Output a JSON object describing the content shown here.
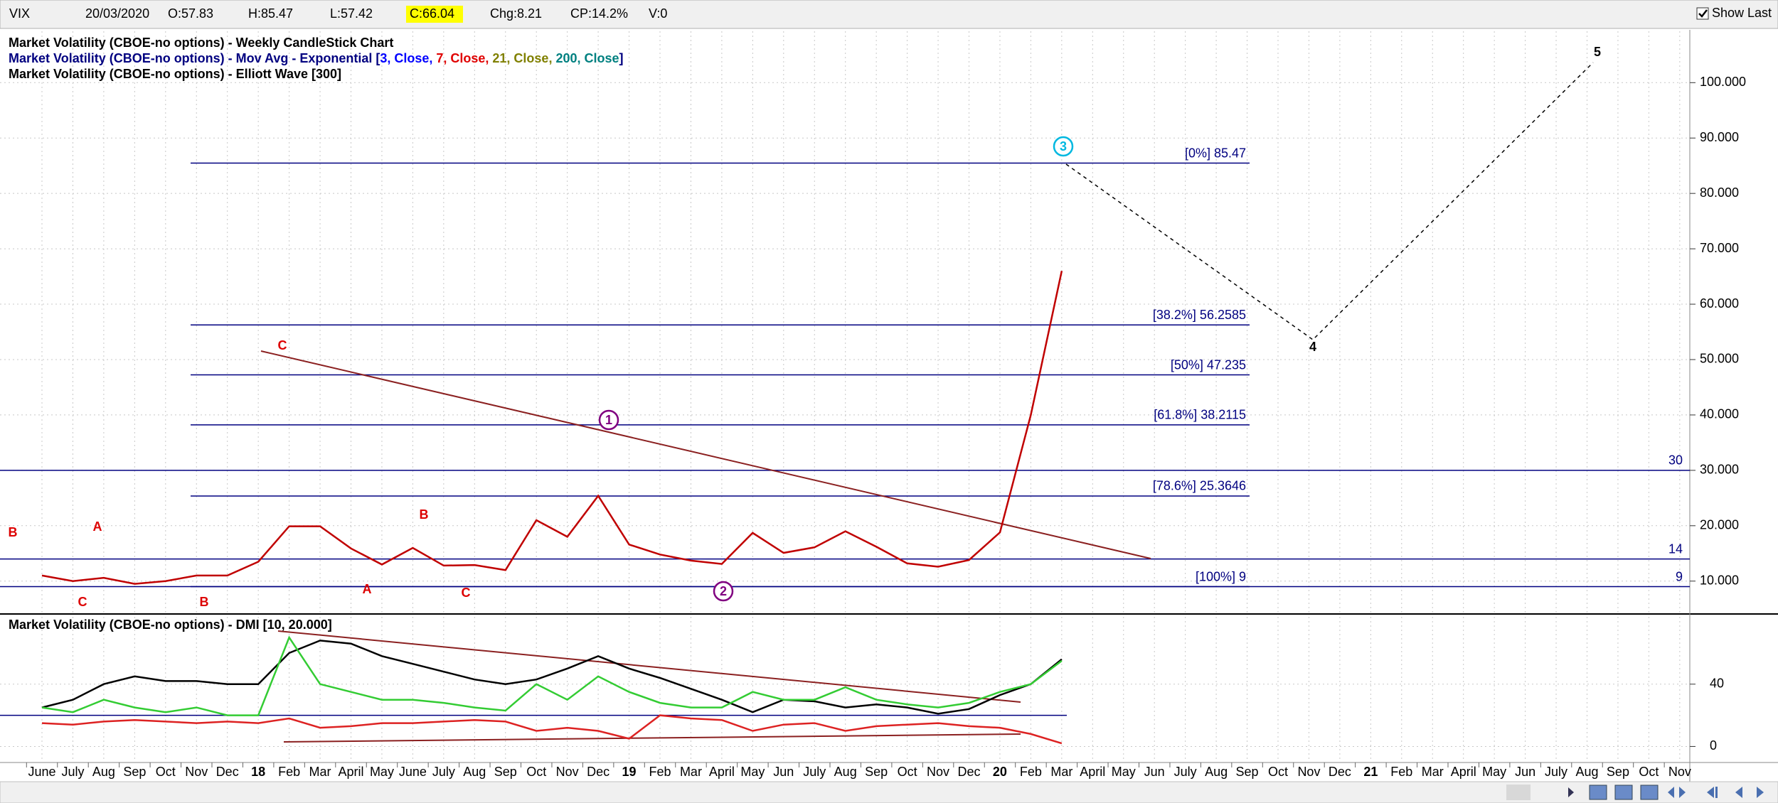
{
  "header": {
    "symbol": "VIX",
    "date": "20/03/2020",
    "open": "O:57.83",
    "high": "H:85.47",
    "low": "L:57.42",
    "close": "C:66.04",
    "chg": "Chg:8.21",
    "cp": "CP:14.2%",
    "volume": "V:0",
    "show_last": "Show Last"
  },
  "chart_data": [
    {
      "type": "line",
      "legend": [
        [
          {
            "text": "Market Volatility (CBOE-no options) - Weekly CandleStick Chart",
            "color": "#000000"
          }
        ],
        [
          {
            "text": "Market Volatility (CBOE-no options) - Mov Avg - Exponential [",
            "color": "#000080"
          },
          {
            "text": "3, Close, ",
            "color": "#0000ff"
          },
          {
            "text": "7, Close, ",
            "color": "#e00000"
          },
          {
            "text": "21, Close, ",
            "color": "#808000"
          },
          {
            "text": "200, Close",
            "color": "#008080"
          },
          {
            "text": "]",
            "color": "#000080"
          }
        ],
        [
          {
            "text": "Market Volatility (CBOE-no options) - Elliott Wave [300]",
            "color": "#000000"
          }
        ]
      ],
      "categories": [
        "June",
        "July",
        "Aug",
        "Sep",
        "Oct",
        "Nov",
        "Dec",
        "18",
        "Feb",
        "Mar",
        "April",
        "May",
        "June",
        "July",
        "Aug",
        "Sep",
        "Oct",
        "Nov",
        "Dec",
        "19",
        "Feb",
        "Mar",
        "April",
        "May",
        "Jun",
        "July",
        "Aug",
        "Sep",
        "Oct",
        "Nov",
        "Dec",
        "20",
        "Feb",
        "Mar",
        "April",
        "May",
        "Jun",
        "July",
        "Aug",
        "Sep",
        "Oct",
        "Nov",
        "Dec",
        "21",
        "Feb",
        "Mar",
        "April",
        "May",
        "Jun",
        "July",
        "Aug",
        "Sep",
        "Oct",
        "Nov"
      ],
      "values": [
        11,
        10,
        10.6,
        9.5,
        10,
        11,
        11,
        13.5,
        19.9,
        19.9,
        15.9,
        13,
        16,
        12.8,
        12.9,
        12,
        21,
        18,
        25.4,
        16.6,
        14.8,
        13.7,
        13.1,
        18.7,
        15.1,
        16.1,
        19,
        16.2,
        13.2,
        12.6,
        13.8,
        18.8,
        40,
        66,
        null,
        null,
        null,
        null,
        null,
        null,
        null,
        null,
        null,
        null,
        null,
        null,
        null,
        null,
        null,
        null,
        null,
        null,
        null,
        null
      ],
      "color": "#c00000",
      "ylim": [
        4.27,
        109.2
      ],
      "yticks": [
        {
          "value": 10,
          "label": "10.000"
        },
        {
          "value": 20,
          "label": "20.000"
        },
        {
          "value": 30,
          "label": "30.000"
        },
        {
          "value": 40,
          "label": "40.000"
        },
        {
          "value": 50,
          "label": "50.000"
        },
        {
          "value": 60,
          "label": "60.000"
        },
        {
          "value": 70,
          "label": "70.000"
        },
        {
          "value": 80,
          "label": "80.000"
        },
        {
          "value": 90,
          "label": "90.000"
        },
        {
          "value": 100,
          "label": "100.000"
        }
      ],
      "grid": true,
      "levels": [
        30,
        14,
        9
      ],
      "fib_levels": [
        {
          "value": 85.47,
          "label": "[0%] 85.47"
        },
        {
          "value": 56.2585,
          "label": "[38.2%] 56.2585"
        },
        {
          "value": 47.235,
          "label": "[50%] 47.235"
        },
        {
          "value": 38.2115,
          "label": "[61.8%] 38.2115"
        },
        {
          "value": 25.3646,
          "label": "[78.6%] 25.3646"
        },
        {
          "value": 9,
          "label": "[100%] 9"
        }
      ],
      "wave_labels": [
        "B",
        "A",
        "C",
        "B",
        "C",
        "A",
        "B",
        "C",
        "1",
        "2",
        "3",
        "4",
        "5"
      ]
    },
    {
      "type": "line",
      "title": "Market Volatility (CBOE-no options) - DMI [10, 20.000]",
      "series": [
        {
          "color": "#000000",
          "values": [
            25,
            30,
            40,
            45,
            42,
            42,
            40,
            40,
            60,
            68,
            66,
            58,
            53,
            48,
            43,
            40,
            43,
            50,
            58,
            50,
            44,
            37,
            30,
            22,
            30,
            29,
            25,
            27,
            25,
            21,
            24,
            33,
            40,
            56
          ]
        },
        {
          "color": "#33cc33",
          "values": [
            25,
            22,
            30,
            25,
            22,
            25,
            20,
            20,
            70,
            40,
            35,
            30,
            30,
            28,
            25,
            23,
            40,
            30,
            45,
            35,
            28,
            25,
            25,
            35,
            30,
            30,
            38,
            30,
            27,
            25,
            28,
            35,
            40,
            55
          ]
        },
        {
          "color": "#dd2222",
          "values": [
            15,
            14,
            16,
            17,
            16,
            15,
            16,
            15,
            18,
            12,
            13,
            15,
            15,
            16,
            17,
            16,
            10,
            12,
            10,
            5,
            20,
            18,
            17,
            10,
            14,
            15,
            10,
            13,
            14,
            15,
            13,
            12,
            8,
            2
          ]
        }
      ],
      "ylim": [
        -10.2,
        82.9
      ],
      "yticks": [
        0,
        40
      ],
      "level": 20
    }
  ]
}
